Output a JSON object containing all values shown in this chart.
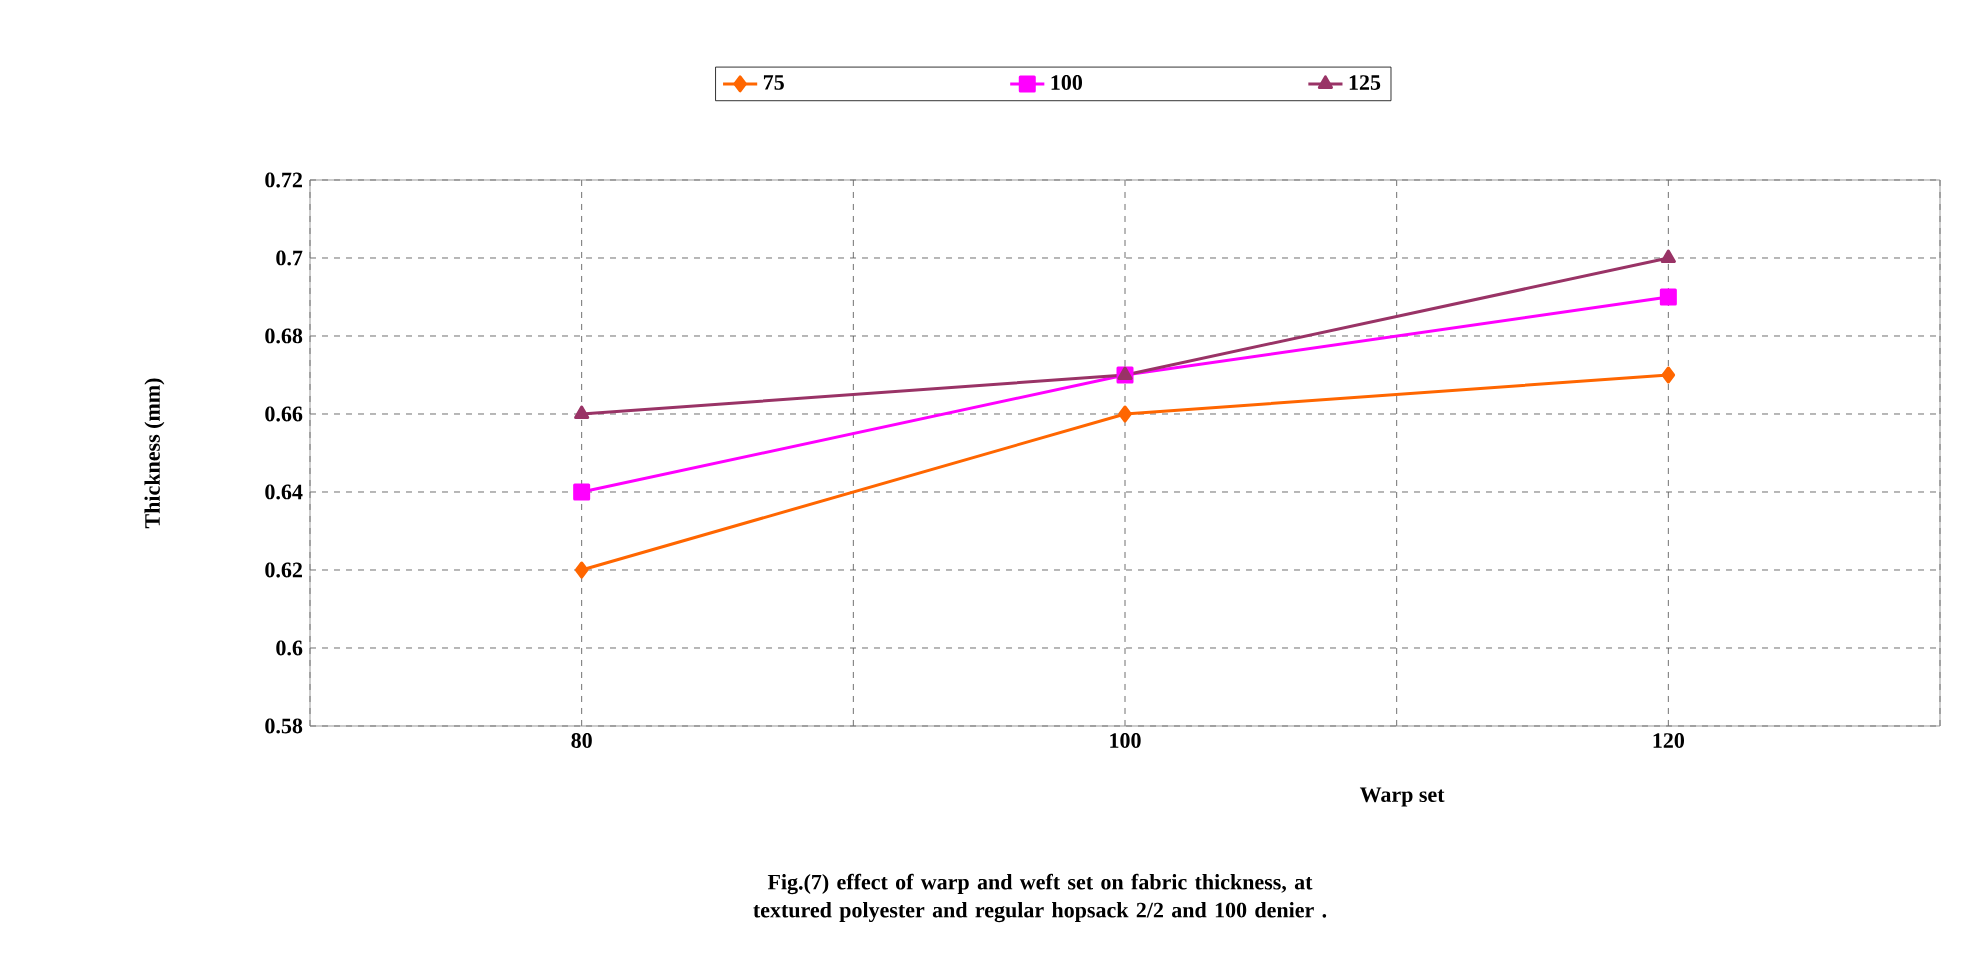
{
  "chart_data": {
    "type": "line",
    "ylabel": "Thickness (mm)",
    "xlabel": "Warp set",
    "categories": [
      "80",
      "100",
      "120"
    ],
    "series": [
      {
        "name": "75",
        "color": "#ff6600",
        "marker": "diamond",
        "values": [
          0.62,
          0.66,
          0.67
        ]
      },
      {
        "name": "100",
        "color": "#ff00ff",
        "marker": "square",
        "values": [
          0.64,
          0.67,
          0.69
        ]
      },
      {
        "name": "125",
        "color": "#993366",
        "marker": "triangle",
        "values": [
          0.66,
          0.67,
          0.7
        ]
      }
    ],
    "ylim": [
      0.58,
      0.72
    ],
    "yticks": [
      0.58,
      0.6,
      0.62,
      0.64,
      0.66,
      0.68,
      0.7,
      0.72
    ],
    "grid": true,
    "legend": "top",
    "line_style": "solid",
    "annotations": [
      "Fig.(7) effect of warp  and weft set on fabric thickness, at textured polyester and regular hopsack 2/2 and 100 denier ."
    ]
  }
}
